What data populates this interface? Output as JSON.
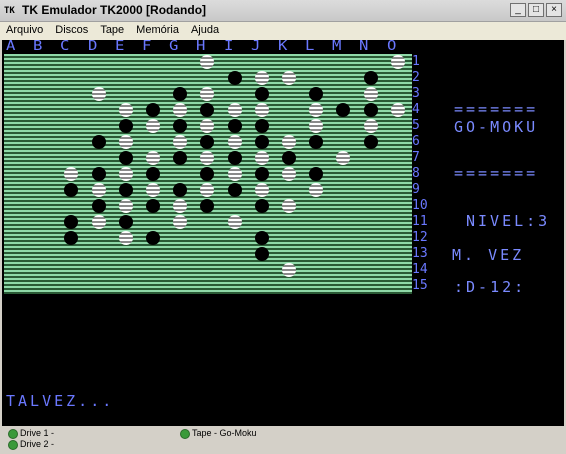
{
  "window": {
    "icon": "TK",
    "title": "TK Emulador TK2000 [Rodando]",
    "minimize": "_",
    "maximize": "□",
    "close": "×"
  },
  "menu": [
    "Arquivo",
    "Discos",
    "Tape",
    "Memória",
    "Ajuda"
  ],
  "board": {
    "columns": [
      "A",
      "B",
      "C",
      "D",
      "E",
      "F",
      "G",
      "H",
      "I",
      "J",
      "K",
      "L",
      "M",
      "N",
      "O"
    ],
    "rows": [
      "1",
      "2",
      "3",
      "4",
      "5",
      "6",
      "7",
      "8",
      "9",
      "10",
      "11",
      "12",
      "13",
      "14",
      "15"
    ],
    "pieces": [
      {
        "c": 7,
        "r": 0,
        "p": "w"
      },
      {
        "c": 14,
        "r": 0,
        "p": "w"
      },
      {
        "c": 8,
        "r": 1,
        "p": "b"
      },
      {
        "c": 9,
        "r": 1,
        "p": "w"
      },
      {
        "c": 10,
        "r": 1,
        "p": "w"
      },
      {
        "c": 13,
        "r": 1,
        "p": "b"
      },
      {
        "c": 3,
        "r": 2,
        "p": "w"
      },
      {
        "c": 6,
        "r": 2,
        "p": "b"
      },
      {
        "c": 7,
        "r": 2,
        "p": "w"
      },
      {
        "c": 9,
        "r": 2,
        "p": "b"
      },
      {
        "c": 11,
        "r": 2,
        "p": "b"
      },
      {
        "c": 13,
        "r": 2,
        "p": "w"
      },
      {
        "c": 4,
        "r": 3,
        "p": "w"
      },
      {
        "c": 5,
        "r": 3,
        "p": "b"
      },
      {
        "c": 6,
        "r": 3,
        "p": "w"
      },
      {
        "c": 7,
        "r": 3,
        "p": "b"
      },
      {
        "c": 8,
        "r": 3,
        "p": "w"
      },
      {
        "c": 9,
        "r": 3,
        "p": "w"
      },
      {
        "c": 11,
        "r": 3,
        "p": "w"
      },
      {
        "c": 12,
        "r": 3,
        "p": "b"
      },
      {
        "c": 13,
        "r": 3,
        "p": "b"
      },
      {
        "c": 14,
        "r": 3,
        "p": "w"
      },
      {
        "c": 4,
        "r": 4,
        "p": "b"
      },
      {
        "c": 5,
        "r": 4,
        "p": "w"
      },
      {
        "c": 6,
        "r": 4,
        "p": "b"
      },
      {
        "c": 7,
        "r": 4,
        "p": "w"
      },
      {
        "c": 8,
        "r": 4,
        "p": "b"
      },
      {
        "c": 9,
        "r": 4,
        "p": "b"
      },
      {
        "c": 11,
        "r": 4,
        "p": "w"
      },
      {
        "c": 13,
        "r": 4,
        "p": "w"
      },
      {
        "c": 3,
        "r": 5,
        "p": "b"
      },
      {
        "c": 4,
        "r": 5,
        "p": "w"
      },
      {
        "c": 6,
        "r": 5,
        "p": "w"
      },
      {
        "c": 7,
        "r": 5,
        "p": "b"
      },
      {
        "c": 8,
        "r": 5,
        "p": "w"
      },
      {
        "c": 9,
        "r": 5,
        "p": "b"
      },
      {
        "c": 10,
        "r": 5,
        "p": "w"
      },
      {
        "c": 11,
        "r": 5,
        "p": "b"
      },
      {
        "c": 13,
        "r": 5,
        "p": "b"
      },
      {
        "c": 4,
        "r": 6,
        "p": "b"
      },
      {
        "c": 5,
        "r": 6,
        "p": "w"
      },
      {
        "c": 6,
        "r": 6,
        "p": "b"
      },
      {
        "c": 7,
        "r": 6,
        "p": "w"
      },
      {
        "c": 8,
        "r": 6,
        "p": "b"
      },
      {
        "c": 9,
        "r": 6,
        "p": "w"
      },
      {
        "c": 10,
        "r": 6,
        "p": "b"
      },
      {
        "c": 12,
        "r": 6,
        "p": "w"
      },
      {
        "c": 2,
        "r": 7,
        "p": "w"
      },
      {
        "c": 3,
        "r": 7,
        "p": "b"
      },
      {
        "c": 4,
        "r": 7,
        "p": "w"
      },
      {
        "c": 5,
        "r": 7,
        "p": "b"
      },
      {
        "c": 7,
        "r": 7,
        "p": "b"
      },
      {
        "c": 8,
        "r": 7,
        "p": "w"
      },
      {
        "c": 9,
        "r": 7,
        "p": "b"
      },
      {
        "c": 10,
        "r": 7,
        "p": "w"
      },
      {
        "c": 11,
        "r": 7,
        "p": "b"
      },
      {
        "c": 2,
        "r": 8,
        "p": "b"
      },
      {
        "c": 3,
        "r": 8,
        "p": "w"
      },
      {
        "c": 4,
        "r": 8,
        "p": "b"
      },
      {
        "c": 5,
        "r": 8,
        "p": "w"
      },
      {
        "c": 6,
        "r": 8,
        "p": "b"
      },
      {
        "c": 7,
        "r": 8,
        "p": "w"
      },
      {
        "c": 8,
        "r": 8,
        "p": "b"
      },
      {
        "c": 9,
        "r": 8,
        "p": "w"
      },
      {
        "c": 11,
        "r": 8,
        "p": "w"
      },
      {
        "c": 3,
        "r": 9,
        "p": "b"
      },
      {
        "c": 4,
        "r": 9,
        "p": "w"
      },
      {
        "c": 5,
        "r": 9,
        "p": "b"
      },
      {
        "c": 6,
        "r": 9,
        "p": "w"
      },
      {
        "c": 7,
        "r": 9,
        "p": "b"
      },
      {
        "c": 9,
        "r": 9,
        "p": "b"
      },
      {
        "c": 10,
        "r": 9,
        "p": "w"
      },
      {
        "c": 2,
        "r": 10,
        "p": "b"
      },
      {
        "c": 3,
        "r": 10,
        "p": "w"
      },
      {
        "c": 4,
        "r": 10,
        "p": "b"
      },
      {
        "c": 6,
        "r": 10,
        "p": "w"
      },
      {
        "c": 8,
        "r": 10,
        "p": "w"
      },
      {
        "c": 2,
        "r": 11,
        "p": "b"
      },
      {
        "c": 4,
        "r": 11,
        "p": "w"
      },
      {
        "c": 5,
        "r": 11,
        "p": "b"
      },
      {
        "c": 9,
        "r": 11,
        "p": "b"
      },
      {
        "c": 9,
        "r": 12,
        "p": "b"
      },
      {
        "c": 10,
        "r": 13,
        "p": "w"
      }
    ]
  },
  "side": {
    "line1": "=======",
    "title": "GO-MOKU",
    "line2": "=======",
    "nivel": "NIVEL:3",
    "vez": "M. VEZ",
    "pos": ":D-12:"
  },
  "message": "TALVEZ...",
  "status": {
    "drive1": "Drive 1 -",
    "drive2": "Drive 2 -",
    "tape": "Tape - Go-Moku"
  }
}
